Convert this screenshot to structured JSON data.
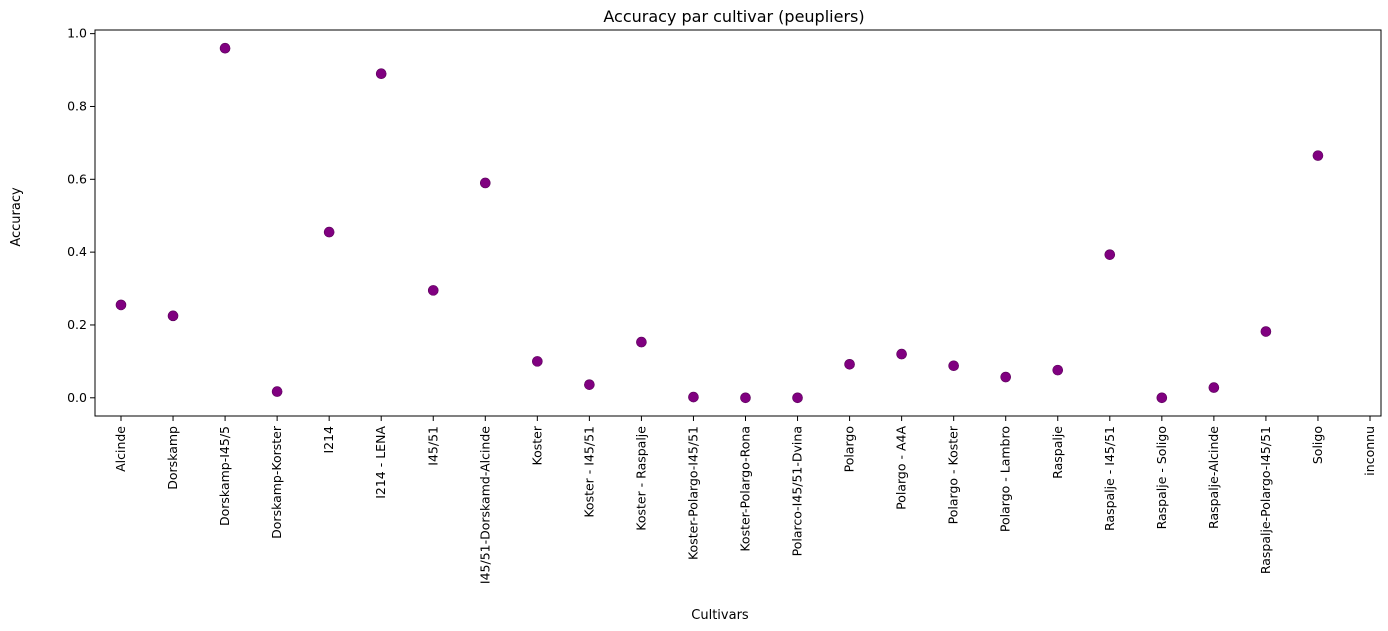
{
  "chart_data": {
    "type": "scatter",
    "title": "Accuracy par cultivar (peupliers)",
    "xlabel": "Cultivars",
    "ylabel": "Accuracy",
    "ylim": [
      -0.05,
      1.01
    ],
    "yticks": [
      0.0,
      0.2,
      0.4,
      0.6,
      0.8,
      1.0
    ],
    "ytick_labels": [
      "0.0",
      "0.2",
      "0.4",
      "0.6",
      "0.8",
      "1.0"
    ],
    "grid": false,
    "point_color": "#800080",
    "categories": [
      "Alcinde",
      "Dorskamp",
      "Dorskamp-I45/5",
      "Dorskamp-Korster",
      "I214",
      "I214 - LENA",
      "I45/51",
      "I45/51-Dorskamd-Alcinde",
      "Koster",
      "Koster - I45/51",
      "Koster - Raspalje",
      "Koster-Polargo-I45/51",
      "Koster-Polargo-Rona",
      "Polarco-I45/51-Dvina",
      "Polargo",
      "Polargo - A4A",
      "Polargo - Koster",
      "Polargo - Lambro",
      "Raspalje",
      "Raspalje - I45/51",
      "Raspalje - Soligo",
      "Raspalje-Alcinde",
      "Raspalje-Polargo-I45/51",
      "Soligo",
      "inconnu"
    ],
    "values": [
      0.255,
      0.225,
      0.96,
      0.017,
      0.455,
      0.89,
      0.295,
      0.59,
      0.1,
      0.036,
      0.153,
      0.002,
      0.0,
      0.0,
      0.092,
      0.12,
      0.088,
      0.057,
      0.076,
      0.393,
      0.0,
      0.028,
      0.182,
      0.665,
      null
    ]
  }
}
